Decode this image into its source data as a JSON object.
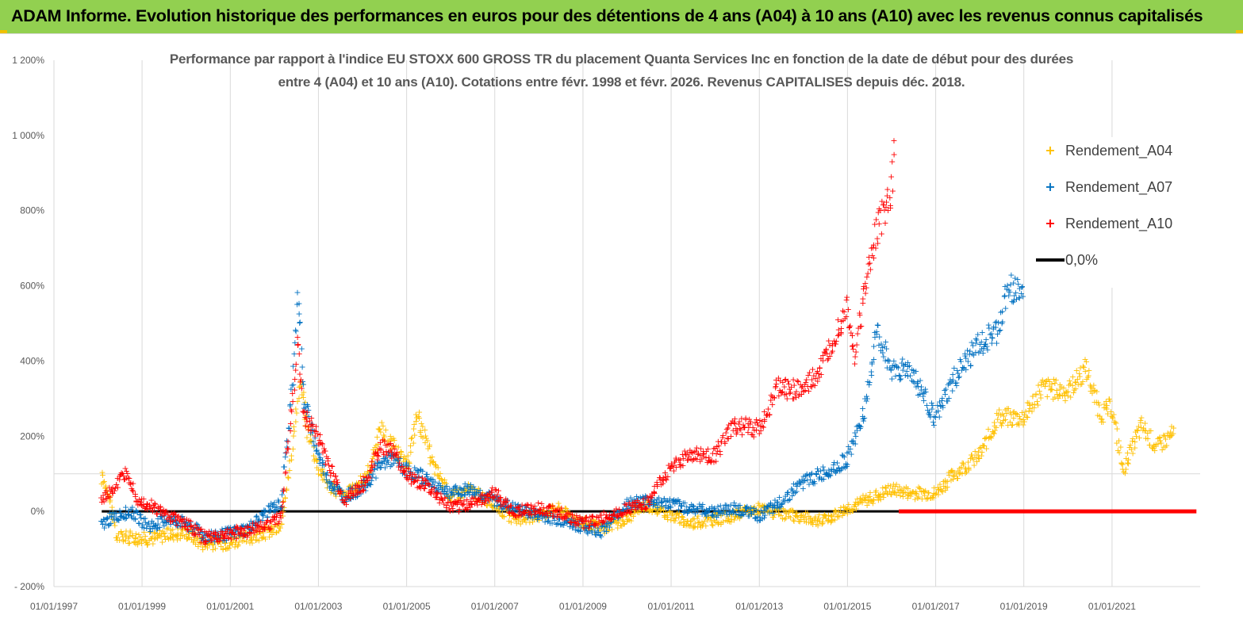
{
  "header": {
    "title": "ADAM Informe. Evolution historique des performances en euros pour des détentions de 4 ans (A04) à 10 ans (A10) avec les revenus connus capitalisés"
  },
  "colors": {
    "header_bg": "#92d050",
    "accent_corner": "#f0c000",
    "A04": "#ffc000",
    "A07": "#0070c0",
    "A10": "#ff0000",
    "zero_line": "#000000",
    "grid": "#d9d9d9"
  },
  "chart_data": {
    "type": "scatter",
    "title_line1": "Performance par rapport à l'indice EU STOXX 600 GROSS TR  du placement Quanta Services Inc en fonction de la date de début pour des durées",
    "title_line2": "entre 4 (A04) et 10 ans (A10). Cotations entre févr. 1998 et févr. 2026. Revenus CAPITALISES depuis déc. 2018.",
    "xlabel": "",
    "ylabel": "",
    "x_axis": {
      "type": "date",
      "min": "1997-01-01",
      "max": "2023-01-01",
      "tick_labels": [
        "01/01/1997",
        "01/01/1999",
        "01/01/2001",
        "01/01/2003",
        "01/01/2005",
        "01/01/2007",
        "01/01/2009",
        "01/01/2011",
        "01/01/2013",
        "01/01/2015",
        "01/01/2017",
        "01/01/2019",
        "01/01/2021"
      ]
    },
    "y_axis": {
      "unit": "%",
      "min": -200,
      "max": 1200,
      "tick_values": [
        -200,
        0,
        200,
        400,
        600,
        800,
        1000,
        1200
      ],
      "tick_labels": [
        "- 200%",
        "0%",
        "200%",
        "400%",
        "600%",
        "800%",
        "1 000%",
        "1 200%"
      ]
    },
    "grid": "vertical",
    "legend_position": "right",
    "series": [
      {
        "name": "Rendement_A04",
        "marker": "+",
        "color": "#ffc000",
        "points": [
          [
            "1998-02-01",
            90
          ],
          [
            "1998-04-01",
            55
          ],
          [
            "1998-06-01",
            -65
          ],
          [
            "1998-10-01",
            -68
          ],
          [
            "1999-03-01",
            -72
          ],
          [
            "1999-08-01",
            -60
          ],
          [
            "2000-01-01",
            -55
          ],
          [
            "2000-06-01",
            -85
          ],
          [
            "2000-12-01",
            -82
          ],
          [
            "2001-06-01",
            -70
          ],
          [
            "2001-12-01",
            -52
          ],
          [
            "2002-03-01",
            -42
          ],
          [
            "2002-06-01",
            180
          ],
          [
            "2002-08-01",
            350
          ],
          [
            "2002-10-01",
            220
          ],
          [
            "2003-01-01",
            120
          ],
          [
            "2003-04-01",
            70
          ],
          [
            "2003-08-01",
            40
          ],
          [
            "2004-02-01",
            90
          ],
          [
            "2004-06-01",
            220
          ],
          [
            "2004-09-01",
            180
          ],
          [
            "2005-01-01",
            120
          ],
          [
            "2005-04-01",
            260
          ],
          [
            "2005-08-01",
            130
          ],
          [
            "2006-01-01",
            40
          ],
          [
            "2006-06-01",
            60
          ],
          [
            "2007-01-01",
            20
          ],
          [
            "2007-06-01",
            -20
          ],
          [
            "2008-01-01",
            -10
          ],
          [
            "2008-06-01",
            10
          ],
          [
            "2009-01-01",
            -30
          ],
          [
            "2009-06-01",
            -45
          ],
          [
            "2010-01-01",
            -20
          ],
          [
            "2010-06-01",
            20
          ],
          [
            "2011-01-01",
            -10
          ],
          [
            "2011-06-01",
            -30
          ],
          [
            "2012-01-01",
            -20
          ],
          [
            "2012-06-01",
            -10
          ],
          [
            "2013-01-01",
            10
          ],
          [
            "2013-06-01",
            -5
          ],
          [
            "2014-01-01",
            -15
          ],
          [
            "2014-06-01",
            -25
          ],
          [
            "2015-01-01",
            10
          ],
          [
            "2015-06-01",
            30
          ],
          [
            "2016-01-01",
            60
          ],
          [
            "2016-06-01",
            50
          ],
          [
            "2017-01-01",
            50
          ],
          [
            "2017-06-01",
            100
          ],
          [
            "2018-01-01",
            150
          ],
          [
            "2018-06-01",
            250
          ],
          [
            "2019-01-01",
            250
          ],
          [
            "2019-06-01",
            330
          ],
          [
            "2020-01-01",
            320
          ],
          [
            "2020-06-01",
            380
          ],
          [
            "2020-10-01",
            260
          ],
          [
            "2021-01-01",
            280
          ],
          [
            "2021-04-01",
            110
          ],
          [
            "2021-09-01",
            230
          ],
          [
            "2022-01-01",
            170
          ],
          [
            "2022-06-01",
            210
          ]
        ]
      },
      {
        "name": "Rendement_A07",
        "marker": "+",
        "color": "#0070c0",
        "points": [
          [
            "1998-02-01",
            -35
          ],
          [
            "1998-06-01",
            -10
          ],
          [
            "1998-10-01",
            0
          ],
          [
            "1999-03-01",
            -40
          ],
          [
            "1999-08-01",
            -20
          ],
          [
            "2000-01-01",
            -30
          ],
          [
            "2000-06-01",
            -65
          ],
          [
            "2000-12-01",
            -60
          ],
          [
            "2001-06-01",
            -45
          ],
          [
            "2001-12-01",
            10
          ],
          [
            "2002-03-01",
            20
          ],
          [
            "2002-06-01",
            350
          ],
          [
            "2002-07-15",
            600
          ],
          [
            "2002-09-01",
            300
          ],
          [
            "2003-01-01",
            150
          ],
          [
            "2003-04-01",
            80
          ],
          [
            "2003-08-01",
            40
          ],
          [
            "2004-02-01",
            70
          ],
          [
            "2004-06-01",
            130
          ],
          [
            "2004-09-01",
            140
          ],
          [
            "2005-01-01",
            110
          ],
          [
            "2005-06-01",
            90
          ],
          [
            "2006-01-01",
            50
          ],
          [
            "2006-06-01",
            60
          ],
          [
            "2007-01-01",
            30
          ],
          [
            "2007-06-01",
            10
          ],
          [
            "2008-01-01",
            -10
          ],
          [
            "2008-06-01",
            -20
          ],
          [
            "2009-01-01",
            -40
          ],
          [
            "2009-06-01",
            -50
          ],
          [
            "2010-01-01",
            20
          ],
          [
            "2010-06-01",
            30
          ],
          [
            "2011-01-01",
            20
          ],
          [
            "2011-06-01",
            10
          ],
          [
            "2012-01-01",
            0
          ],
          [
            "2012-06-01",
            10
          ],
          [
            "2013-01-01",
            -10
          ],
          [
            "2013-06-01",
            20
          ],
          [
            "2014-01-01",
            80
          ],
          [
            "2014-06-01",
            100
          ],
          [
            "2015-01-01",
            140
          ],
          [
            "2015-06-01",
            280
          ],
          [
            "2015-09-01",
            480
          ],
          [
            "2016-01-01",
            380
          ],
          [
            "2016-06-01",
            380
          ],
          [
            "2017-01-01",
            250
          ],
          [
            "2017-06-01",
            350
          ],
          [
            "2018-01-01",
            450
          ],
          [
            "2018-06-01",
            480
          ],
          [
            "2018-09-01",
            600
          ],
          [
            "2019-01-01",
            580
          ]
        ]
      },
      {
        "name": "Rendement_A10",
        "marker": "+",
        "color": "#ff0000",
        "points": [
          [
            "1998-02-01",
            30
          ],
          [
            "1998-06-01",
            70
          ],
          [
            "1998-09-01",
            110
          ],
          [
            "1998-12-01",
            30
          ],
          [
            "1999-03-01",
            20
          ],
          [
            "1999-08-01",
            -10
          ],
          [
            "2000-01-01",
            -30
          ],
          [
            "2000-06-01",
            -70
          ],
          [
            "2000-12-01",
            -60
          ],
          [
            "2001-06-01",
            -50
          ],
          [
            "2001-12-01",
            -30
          ],
          [
            "2002-03-01",
            -10
          ],
          [
            "2002-06-01",
            300
          ],
          [
            "2002-07-15",
            450
          ],
          [
            "2002-09-01",
            260
          ],
          [
            "2003-01-01",
            200
          ],
          [
            "2003-04-01",
            120
          ],
          [
            "2003-08-01",
            30
          ],
          [
            "2004-02-01",
            80
          ],
          [
            "2004-06-01",
            180
          ],
          [
            "2004-09-01",
            160
          ],
          [
            "2005-01-01",
            100
          ],
          [
            "2005-06-01",
            70
          ],
          [
            "2006-01-01",
            10
          ],
          [
            "2006-06-01",
            20
          ],
          [
            "2007-01-01",
            50
          ],
          [
            "2007-06-01",
            0
          ],
          [
            "2008-01-01",
            10
          ],
          [
            "2008-06-01",
            0
          ],
          [
            "2009-01-01",
            -30
          ],
          [
            "2009-06-01",
            -20
          ],
          [
            "2010-01-01",
            10
          ],
          [
            "2010-06-01",
            20
          ],
          [
            "2011-01-01",
            120
          ],
          [
            "2011-06-01",
            150
          ],
          [
            "2012-01-01",
            150
          ],
          [
            "2012-06-01",
            230
          ],
          [
            "2013-01-01",
            220
          ],
          [
            "2013-06-01",
            330
          ],
          [
            "2014-01-01",
            320
          ],
          [
            "2014-06-01",
            380
          ],
          [
            "2015-01-01",
            550
          ],
          [
            "2015-03-01",
            420
          ],
          [
            "2015-06-01",
            600
          ],
          [
            "2015-09-01",
            750
          ],
          [
            "2016-01-01",
            850
          ],
          [
            "2016-02-01",
            980
          ]
        ]
      },
      {
        "name": "0,0%",
        "marker": "line",
        "color": "#000000",
        "points": [
          [
            "1998-02-01",
            0
          ],
          [
            "2016-03-01",
            0
          ]
        ]
      }
    ],
    "a10_flat_zero_after": {
      "from": "2016-03-01",
      "to": "2022-12-01",
      "value": 0
    }
  }
}
